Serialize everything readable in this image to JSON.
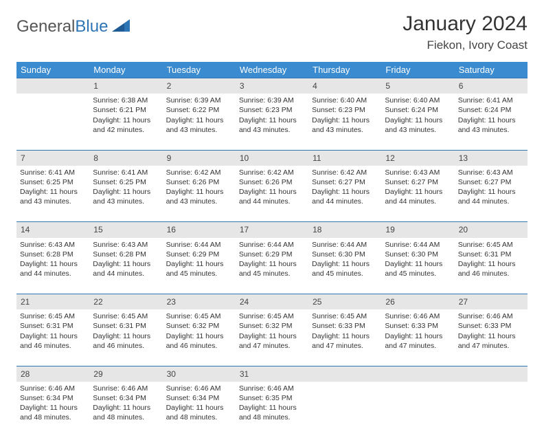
{
  "logo": {
    "word1": "General",
    "word2": "Blue"
  },
  "title": "January 2024",
  "location": "Fiekon, Ivory Coast",
  "weekdays": [
    "Sunday",
    "Monday",
    "Tuesday",
    "Wednesday",
    "Thursday",
    "Friday",
    "Saturday"
  ],
  "colors": {
    "header_bg": "#3a8bd0",
    "header_text": "#ffffff",
    "daynum_bg": "#e6e6e6",
    "row_border": "#2e75b6",
    "logo_blue": "#2e75b6"
  },
  "weeks": [
    {
      "nums": [
        "",
        "1",
        "2",
        "3",
        "4",
        "5",
        "6"
      ],
      "cells": [
        null,
        {
          "sunrise": "Sunrise: 6:38 AM",
          "sunset": "Sunset: 6:21 PM",
          "d1": "Daylight: 11 hours",
          "d2": "and 42 minutes."
        },
        {
          "sunrise": "Sunrise: 6:39 AM",
          "sunset": "Sunset: 6:22 PM",
          "d1": "Daylight: 11 hours",
          "d2": "and 43 minutes."
        },
        {
          "sunrise": "Sunrise: 6:39 AM",
          "sunset": "Sunset: 6:23 PM",
          "d1": "Daylight: 11 hours",
          "d2": "and 43 minutes."
        },
        {
          "sunrise": "Sunrise: 6:40 AM",
          "sunset": "Sunset: 6:23 PM",
          "d1": "Daylight: 11 hours",
          "d2": "and 43 minutes."
        },
        {
          "sunrise": "Sunrise: 6:40 AM",
          "sunset": "Sunset: 6:24 PM",
          "d1": "Daylight: 11 hours",
          "d2": "and 43 minutes."
        },
        {
          "sunrise": "Sunrise: 6:41 AM",
          "sunset": "Sunset: 6:24 PM",
          "d1": "Daylight: 11 hours",
          "d2": "and 43 minutes."
        }
      ]
    },
    {
      "nums": [
        "7",
        "8",
        "9",
        "10",
        "11",
        "12",
        "13"
      ],
      "cells": [
        {
          "sunrise": "Sunrise: 6:41 AM",
          "sunset": "Sunset: 6:25 PM",
          "d1": "Daylight: 11 hours",
          "d2": "and 43 minutes."
        },
        {
          "sunrise": "Sunrise: 6:41 AM",
          "sunset": "Sunset: 6:25 PM",
          "d1": "Daylight: 11 hours",
          "d2": "and 43 minutes."
        },
        {
          "sunrise": "Sunrise: 6:42 AM",
          "sunset": "Sunset: 6:26 PM",
          "d1": "Daylight: 11 hours",
          "d2": "and 43 minutes."
        },
        {
          "sunrise": "Sunrise: 6:42 AM",
          "sunset": "Sunset: 6:26 PM",
          "d1": "Daylight: 11 hours",
          "d2": "and 44 minutes."
        },
        {
          "sunrise": "Sunrise: 6:42 AM",
          "sunset": "Sunset: 6:27 PM",
          "d1": "Daylight: 11 hours",
          "d2": "and 44 minutes."
        },
        {
          "sunrise": "Sunrise: 6:43 AM",
          "sunset": "Sunset: 6:27 PM",
          "d1": "Daylight: 11 hours",
          "d2": "and 44 minutes."
        },
        {
          "sunrise": "Sunrise: 6:43 AM",
          "sunset": "Sunset: 6:27 PM",
          "d1": "Daylight: 11 hours",
          "d2": "and 44 minutes."
        }
      ]
    },
    {
      "nums": [
        "14",
        "15",
        "16",
        "17",
        "18",
        "19",
        "20"
      ],
      "cells": [
        {
          "sunrise": "Sunrise: 6:43 AM",
          "sunset": "Sunset: 6:28 PM",
          "d1": "Daylight: 11 hours",
          "d2": "and 44 minutes."
        },
        {
          "sunrise": "Sunrise: 6:43 AM",
          "sunset": "Sunset: 6:28 PM",
          "d1": "Daylight: 11 hours",
          "d2": "and 44 minutes."
        },
        {
          "sunrise": "Sunrise: 6:44 AM",
          "sunset": "Sunset: 6:29 PM",
          "d1": "Daylight: 11 hours",
          "d2": "and 45 minutes."
        },
        {
          "sunrise": "Sunrise: 6:44 AM",
          "sunset": "Sunset: 6:29 PM",
          "d1": "Daylight: 11 hours",
          "d2": "and 45 minutes."
        },
        {
          "sunrise": "Sunrise: 6:44 AM",
          "sunset": "Sunset: 6:30 PM",
          "d1": "Daylight: 11 hours",
          "d2": "and 45 minutes."
        },
        {
          "sunrise": "Sunrise: 6:44 AM",
          "sunset": "Sunset: 6:30 PM",
          "d1": "Daylight: 11 hours",
          "d2": "and 45 minutes."
        },
        {
          "sunrise": "Sunrise: 6:45 AM",
          "sunset": "Sunset: 6:31 PM",
          "d1": "Daylight: 11 hours",
          "d2": "and 46 minutes."
        }
      ]
    },
    {
      "nums": [
        "21",
        "22",
        "23",
        "24",
        "25",
        "26",
        "27"
      ],
      "cells": [
        {
          "sunrise": "Sunrise: 6:45 AM",
          "sunset": "Sunset: 6:31 PM",
          "d1": "Daylight: 11 hours",
          "d2": "and 46 minutes."
        },
        {
          "sunrise": "Sunrise: 6:45 AM",
          "sunset": "Sunset: 6:31 PM",
          "d1": "Daylight: 11 hours",
          "d2": "and 46 minutes."
        },
        {
          "sunrise": "Sunrise: 6:45 AM",
          "sunset": "Sunset: 6:32 PM",
          "d1": "Daylight: 11 hours",
          "d2": "and 46 minutes."
        },
        {
          "sunrise": "Sunrise: 6:45 AM",
          "sunset": "Sunset: 6:32 PM",
          "d1": "Daylight: 11 hours",
          "d2": "and 47 minutes."
        },
        {
          "sunrise": "Sunrise: 6:45 AM",
          "sunset": "Sunset: 6:33 PM",
          "d1": "Daylight: 11 hours",
          "d2": "and 47 minutes."
        },
        {
          "sunrise": "Sunrise: 6:46 AM",
          "sunset": "Sunset: 6:33 PM",
          "d1": "Daylight: 11 hours",
          "d2": "and 47 minutes."
        },
        {
          "sunrise": "Sunrise: 6:46 AM",
          "sunset": "Sunset: 6:33 PM",
          "d1": "Daylight: 11 hours",
          "d2": "and 47 minutes."
        }
      ]
    },
    {
      "nums": [
        "28",
        "29",
        "30",
        "31",
        "",
        "",
        ""
      ],
      "cells": [
        {
          "sunrise": "Sunrise: 6:46 AM",
          "sunset": "Sunset: 6:34 PM",
          "d1": "Daylight: 11 hours",
          "d2": "and 48 minutes."
        },
        {
          "sunrise": "Sunrise: 6:46 AM",
          "sunset": "Sunset: 6:34 PM",
          "d1": "Daylight: 11 hours",
          "d2": "and 48 minutes."
        },
        {
          "sunrise": "Sunrise: 6:46 AM",
          "sunset": "Sunset: 6:34 PM",
          "d1": "Daylight: 11 hours",
          "d2": "and 48 minutes."
        },
        {
          "sunrise": "Sunrise: 6:46 AM",
          "sunset": "Sunset: 6:35 PM",
          "d1": "Daylight: 11 hours",
          "d2": "and 48 minutes."
        },
        null,
        null,
        null
      ]
    }
  ]
}
